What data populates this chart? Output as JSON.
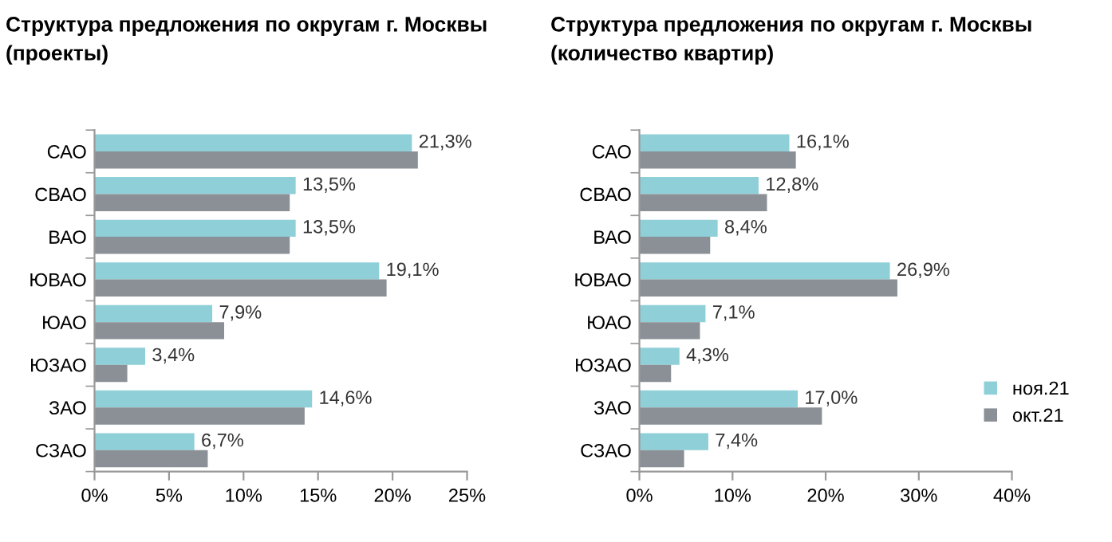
{
  "chart_data": [
    {
      "type": "bar",
      "orientation": "horizontal",
      "title": "Структура предложения по округам г. Москвы (проекты)",
      "categories": [
        "САО",
        "СВАО",
        "ВАО",
        "ЮВАО",
        "ЮАО",
        "ЮЗАО",
        "ЗАО",
        "СЗАО"
      ],
      "series": [
        {
          "color": "#8ecfd8",
          "values": [
            21.3,
            13.5,
            13.5,
            19.1,
            7.9,
            3.4,
            14.6,
            6.7
          ],
          "value_labels": [
            "21,3%",
            "13,5%",
            "13,5%",
            "19,1%",
            "7,9%",
            "3,4%",
            "14,6%",
            "6,7%"
          ]
        },
        {
          "color": "#8a9096",
          "values": [
            21.7,
            13.1,
            13.1,
            19.6,
            8.7,
            2.2,
            14.1,
            7.6
          ]
        }
      ],
      "xlim": [
        0,
        25
      ],
      "xticks": [
        {
          "value": 0,
          "label": "0%"
        },
        {
          "value": 5,
          "label": "5%"
        },
        {
          "value": 10,
          "label": "10%"
        },
        {
          "value": 15,
          "label": "15%"
        },
        {
          "value": 20,
          "label": "20%"
        },
        {
          "value": 25,
          "label": "25%"
        }
      ],
      "grid": false,
      "legend": false
    },
    {
      "type": "bar",
      "orientation": "horizontal",
      "title": "Структура предложения по округам г. Москвы (количество квартир)",
      "categories": [
        "САО",
        "СВАО",
        "ВАО",
        "ЮВАО",
        "ЮАО",
        "ЮЗАО",
        "ЗАО",
        "СЗАО"
      ],
      "series": [
        {
          "name": "ноя.21",
          "color": "#8ecfd8",
          "values": [
            16.1,
            12.8,
            8.4,
            26.9,
            7.1,
            4.3,
            17.0,
            7.4
          ],
          "value_labels": [
            "16,1%",
            "12,8%",
            "8,4%",
            "26,9%",
            "7,1%",
            "4,3%",
            "17,0%",
            "7,4%"
          ]
        },
        {
          "name": "окт.21",
          "color": "#8a9096",
          "values": [
            16.8,
            13.7,
            7.6,
            27.7,
            6.5,
            3.4,
            19.6,
            4.8
          ]
        }
      ],
      "xlim": [
        0,
        40
      ],
      "xticks": [
        {
          "value": 0,
          "label": "0%"
        },
        {
          "value": 10,
          "label": "10%"
        },
        {
          "value": 20,
          "label": "20%"
        },
        {
          "value": 30,
          "label": "30%"
        },
        {
          "value": 40,
          "label": "40%"
        }
      ],
      "grid": false,
      "legend": "right"
    }
  ]
}
